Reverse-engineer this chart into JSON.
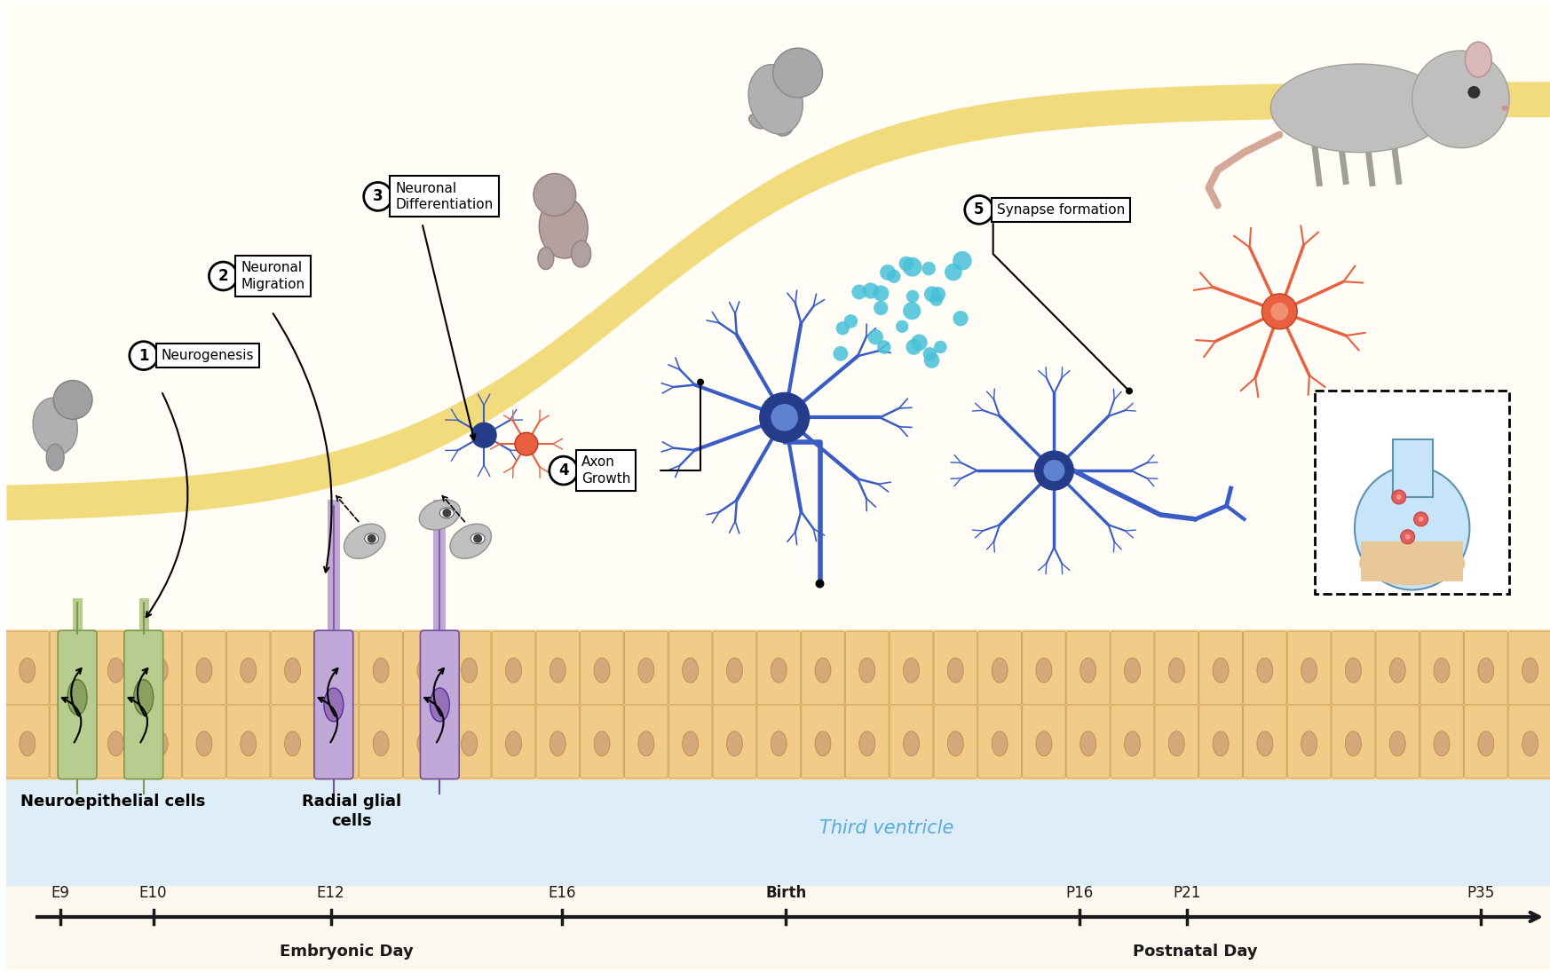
{
  "background_color": "#ffffff",
  "cream_bg": "#fdf8ee",
  "ventricle_color": "#ddeef8",
  "cell_layer_color": "#f5dcaa",
  "cell_body_color": "#f0cc88",
  "cell_body_edge": "#d4a860",
  "cell_nucleus_color": "#d4a878",
  "growth_curve_color": "#f0d870",
  "timeline_color": "#1a1a1a",
  "timeline_labels": [
    "E9",
    "E10",
    "E12",
    "E16",
    "Birth",
    "P16",
    "P21",
    "P35"
  ],
  "timeline_x": [
    0.035,
    0.095,
    0.21,
    0.36,
    0.505,
    0.695,
    0.765,
    0.955
  ],
  "embryonic_label": "Embryonic Day",
  "postnatal_label": "Postnatal Day",
  "third_ventricle_text": "Third ventricle",
  "third_ventricle_color": "#5aabda",
  "neuroepithelial_label": "Neuroepithelial cells",
  "radial_glial_label": "Radial glial\ncells",
  "neuroepith_body": "#b8cc90",
  "neuroepith_nucleus": "#8aa060",
  "radial_body": "#c0a8d8",
  "radial_nucleus": "#9870b8",
  "neuron_blue": "#3a5cc5",
  "neuron_blue_dark": "#253c8a",
  "neuron_orange": "#e86040",
  "synapse_dot_color": "#48c0d8",
  "arrow_color": "#111111"
}
